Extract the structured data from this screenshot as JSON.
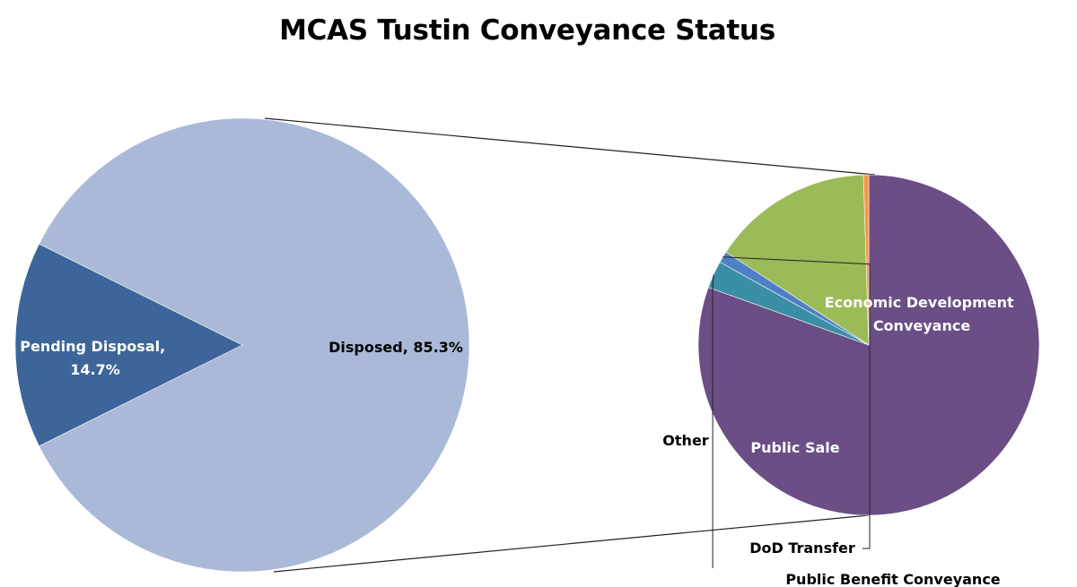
{
  "chart_data": [
    {
      "type": "pie",
      "title": "MCAS Tustin Conveyance Status",
      "slices": [
        {
          "name": "Disposed",
          "value": 85.3,
          "display": "Disposed, 85.3%",
          "color": "#aab9d7"
        },
        {
          "name": "Pending Disposal",
          "value": 14.7,
          "display": "Pending Disposal,",
          "display2": "14.7%",
          "color": "#3d6599"
        }
      ]
    },
    {
      "type": "pie",
      "title": "",
      "slices": [
        {
          "name": "Economic Development Conveyance",
          "value": 80.5,
          "display": "Economic Development",
          "display2": "Conveyance",
          "color": "#6a4e85"
        },
        {
          "name": "Public Benefit Conveyance",
          "value": 2.6,
          "display": "Public Benefit Conveyance",
          "color": "#3a8ea5"
        },
        {
          "name": "DoD Transfer",
          "value": 1.1,
          "display": "DoD Transfer",
          "color": "#4f7fc4"
        },
        {
          "name": "Public Sale",
          "value": 15.3,
          "display": "Public Sale",
          "color": "#9bbb59"
        },
        {
          "name": "Other",
          "value": 0.5,
          "display": "Other",
          "color": "#f79646"
        }
      ]
    }
  ]
}
